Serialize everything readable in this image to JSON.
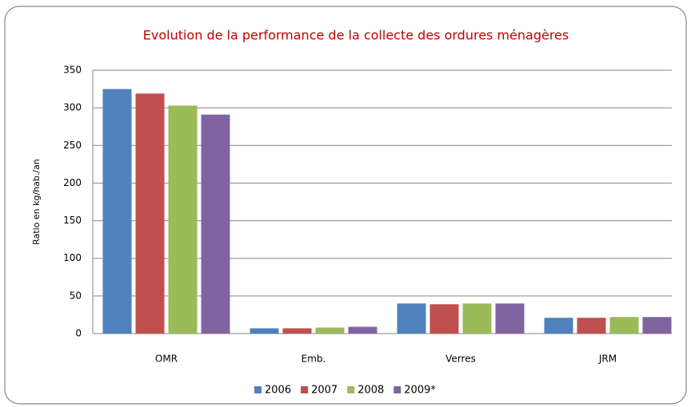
{
  "chart_data": {
    "type": "bar",
    "title": "Evolution de la performance de la collecte des ordures ménagères",
    "y_label": "Ratio en kg/hab./an",
    "categories": [
      "OMR",
      "Emb.",
      "Verres",
      "JRM"
    ],
    "series": [
      {
        "name": "2006",
        "color": "#4f81bd",
        "values": [
          325,
          7,
          40,
          21
        ]
      },
      {
        "name": "2007",
        "color": "#c0504d",
        "values": [
          319,
          7,
          39,
          21
        ]
      },
      {
        "name": "2008",
        "color": "#9bbb59",
        "values": [
          303,
          8,
          40,
          22
        ]
      },
      {
        "name": "2009*",
        "color": "#8064a2",
        "values": [
          291,
          9,
          40,
          22
        ]
      }
    ],
    "ylim": [
      0,
      350
    ],
    "yticks": [
      0,
      50,
      100,
      150,
      200,
      250,
      300,
      350
    ],
    "grid": true,
    "legend": "bottom"
  }
}
